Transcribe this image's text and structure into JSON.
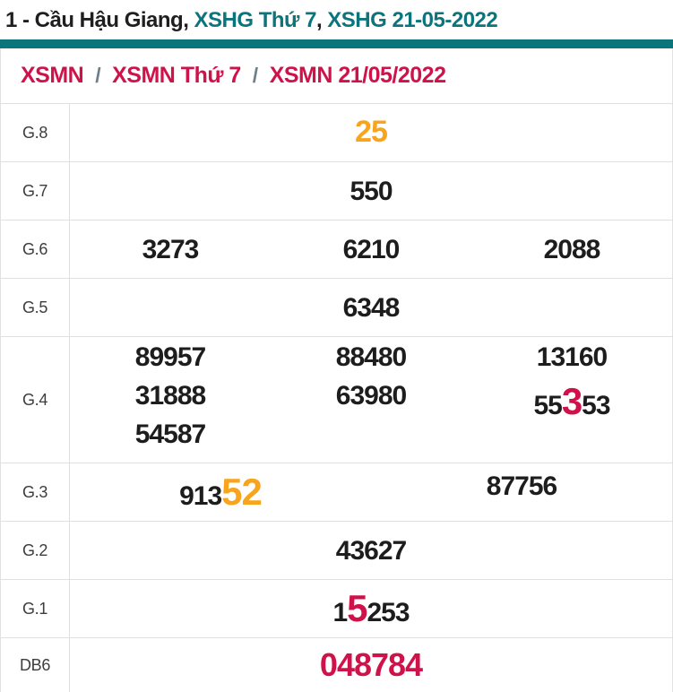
{
  "page": {
    "title": {
      "prefix": "1 - Cầu Hậu Giang, ",
      "link1": "XSHG Thứ 7",
      "separator": ", ",
      "link2": "XSHG 21-05-2022"
    },
    "breadcrumb": {
      "items": [
        "XSMN",
        "XSMN Thứ 7",
        "XSMN 21/05/2022"
      ],
      "separator": "/"
    }
  },
  "colors": {
    "teal": "#0c757c",
    "crimson": "#cf1249",
    "orange": "#f8a41c",
    "number_black": "#1d1d1d",
    "border_gray": "#e0e0e0",
    "slash_gray": "#6e7f87"
  },
  "table": {
    "rows": [
      {
        "label": "G.8",
        "columns": 1,
        "lines": [
          [
            [
              {
                "t": "25",
                "c": "orange",
                "s": "m"
              }
            ]
          ]
        ]
      },
      {
        "label": "G.7",
        "columns": 1,
        "lines": [
          [
            [
              {
                "t": "550"
              }
            ]
          ]
        ]
      },
      {
        "label": "G.6",
        "columns": 3,
        "lines": [
          [
            [
              {
                "t": "3273"
              }
            ],
            [
              {
                "t": "6210"
              }
            ],
            [
              {
                "t": "2088"
              }
            ]
          ]
        ]
      },
      {
        "label": "G.5",
        "columns": 1,
        "lines": [
          [
            [
              {
                "t": "6348"
              }
            ]
          ]
        ]
      },
      {
        "label": "G.4",
        "columns": 3,
        "lines": [
          [
            [
              {
                "t": "89957"
              }
            ],
            [
              {
                "t": "88480"
              }
            ],
            [
              {
                "t": "13160"
              }
            ]
          ],
          [
            [
              {
                "t": "31888"
              }
            ],
            [
              {
                "t": "63980"
              }
            ],
            [
              {
                "t": "55"
              },
              {
                "t": "3",
                "c": "red",
                "s": "xl"
              },
              {
                "t": "53"
              }
            ]
          ],
          [
            [
              {
                "t": "54587"
              }
            ],
            [],
            []
          ]
        ]
      },
      {
        "label": "G.3",
        "columns": 2,
        "lines": [
          [
            [
              {
                "t": "913"
              },
              {
                "t": "52",
                "c": "orange",
                "s": "xl"
              }
            ],
            [
              {
                "t": "87756"
              }
            ]
          ]
        ]
      },
      {
        "label": "G.2",
        "columns": 1,
        "lines": [
          [
            [
              {
                "t": "43627"
              }
            ]
          ]
        ]
      },
      {
        "label": "G.1",
        "columns": 1,
        "lines": [
          [
            [
              {
                "t": "1"
              },
              {
                "t": "5",
                "c": "red",
                "s": "xl"
              },
              {
                "t": "253"
              }
            ]
          ]
        ]
      },
      {
        "label": "DB6",
        "columns": 1,
        "lines": [
          [
            [
              {
                "t": "048784",
                "c": "red",
                "s": "l"
              }
            ]
          ]
        ]
      }
    ]
  }
}
